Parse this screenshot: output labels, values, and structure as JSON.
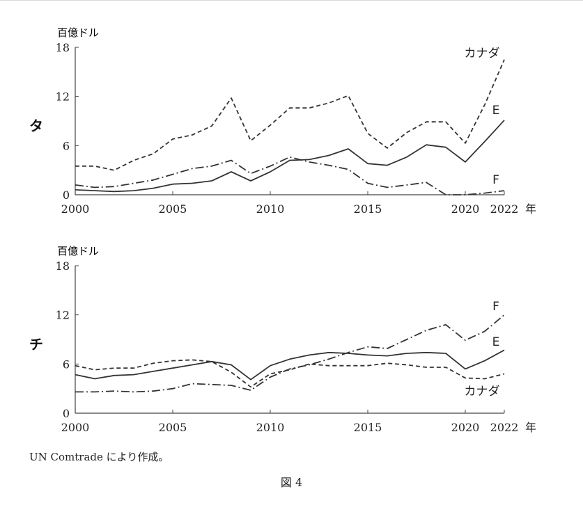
{
  "source_note": "UN Comtrade により作成。",
  "figure_caption": "図 4",
  "chart_data": [
    {
      "type": "line",
      "side_label": "タ",
      "unit_label": "百億ドル",
      "x_unit": "年",
      "xlim": [
        2000,
        2022
      ],
      "ylim": [
        0,
        18
      ],
      "x_ticks": [
        2000,
        2005,
        2010,
        2015,
        2020,
        2022
      ],
      "y_ticks": [
        0,
        6,
        12,
        18
      ],
      "x": [
        2000,
        2001,
        2002,
        2003,
        2004,
        2005,
        2006,
        2007,
        2008,
        2009,
        2010,
        2011,
        2012,
        2013,
        2014,
        2015,
        2016,
        2017,
        2018,
        2019,
        2020,
        2021,
        2022
      ],
      "series": [
        {
          "name": "カナダ",
          "style": "dashed",
          "values": [
            3.5,
            3.5,
            3.0,
            4.2,
            5.0,
            6.8,
            7.3,
            8.4,
            11.8,
            6.6,
            8.5,
            10.6,
            10.6,
            11.2,
            12.1,
            7.5,
            5.7,
            7.6,
            8.9,
            8.9,
            6.3,
            11.0,
            16.5
          ]
        },
        {
          "name": "E",
          "style": "solid",
          "values": [
            0.6,
            0.5,
            0.4,
            0.5,
            0.8,
            1.3,
            1.4,
            1.7,
            2.8,
            1.7,
            2.8,
            4.2,
            4.3,
            4.8,
            5.6,
            3.8,
            3.6,
            4.6,
            6.1,
            5.8,
            4.0,
            6.5,
            9.1
          ]
        },
        {
          "name": "F",
          "style": "dashdot",
          "values": [
            1.2,
            0.9,
            1.0,
            1.4,
            1.8,
            2.5,
            3.2,
            3.5,
            4.2,
            2.6,
            3.5,
            4.6,
            4.0,
            3.6,
            3.1,
            1.4,
            0.9,
            1.2,
            1.5,
            0.0,
            0.0,
            0.2,
            0.5
          ]
        }
      ]
    },
    {
      "type": "line",
      "side_label": "チ",
      "unit_label": "百億ドル",
      "x_unit": "年",
      "xlim": [
        2000,
        2022
      ],
      "ylim": [
        0,
        18
      ],
      "x_ticks": [
        2000,
        2005,
        2010,
        2015,
        2020,
        2022
      ],
      "y_ticks": [
        0,
        6,
        12,
        18
      ],
      "x": [
        2000,
        2001,
        2002,
        2003,
        2004,
        2005,
        2006,
        2007,
        2008,
        2009,
        2010,
        2011,
        2012,
        2013,
        2014,
        2015,
        2016,
        2017,
        2018,
        2019,
        2020,
        2021,
        2022
      ],
      "series": [
        {
          "name": "カナダ",
          "style": "dashed",
          "values": [
            5.8,
            5.3,
            5.5,
            5.5,
            6.1,
            6.4,
            6.5,
            6.3,
            5.0,
            3.2,
            4.8,
            5.3,
            6.0,
            5.8,
            5.8,
            5.8,
            6.1,
            5.9,
            5.6,
            5.6,
            4.3,
            4.2,
            4.8
          ]
        },
        {
          "name": "E",
          "style": "solid",
          "values": [
            4.7,
            4.2,
            4.6,
            4.7,
            5.1,
            5.5,
            5.9,
            6.3,
            5.9,
            4.1,
            5.8,
            6.6,
            7.1,
            7.4,
            7.3,
            7.1,
            7.0,
            7.3,
            7.4,
            7.3,
            5.4,
            6.4,
            7.7
          ]
        },
        {
          "name": "F",
          "style": "dashdot",
          "values": [
            2.6,
            2.6,
            2.7,
            2.6,
            2.7,
            3.0,
            3.6,
            3.5,
            3.4,
            2.8,
            4.4,
            5.4,
            5.9,
            6.6,
            7.4,
            8.1,
            7.9,
            9.0,
            10.1,
            10.8,
            8.9,
            10.0,
            12.0
          ]
        }
      ]
    }
  ]
}
